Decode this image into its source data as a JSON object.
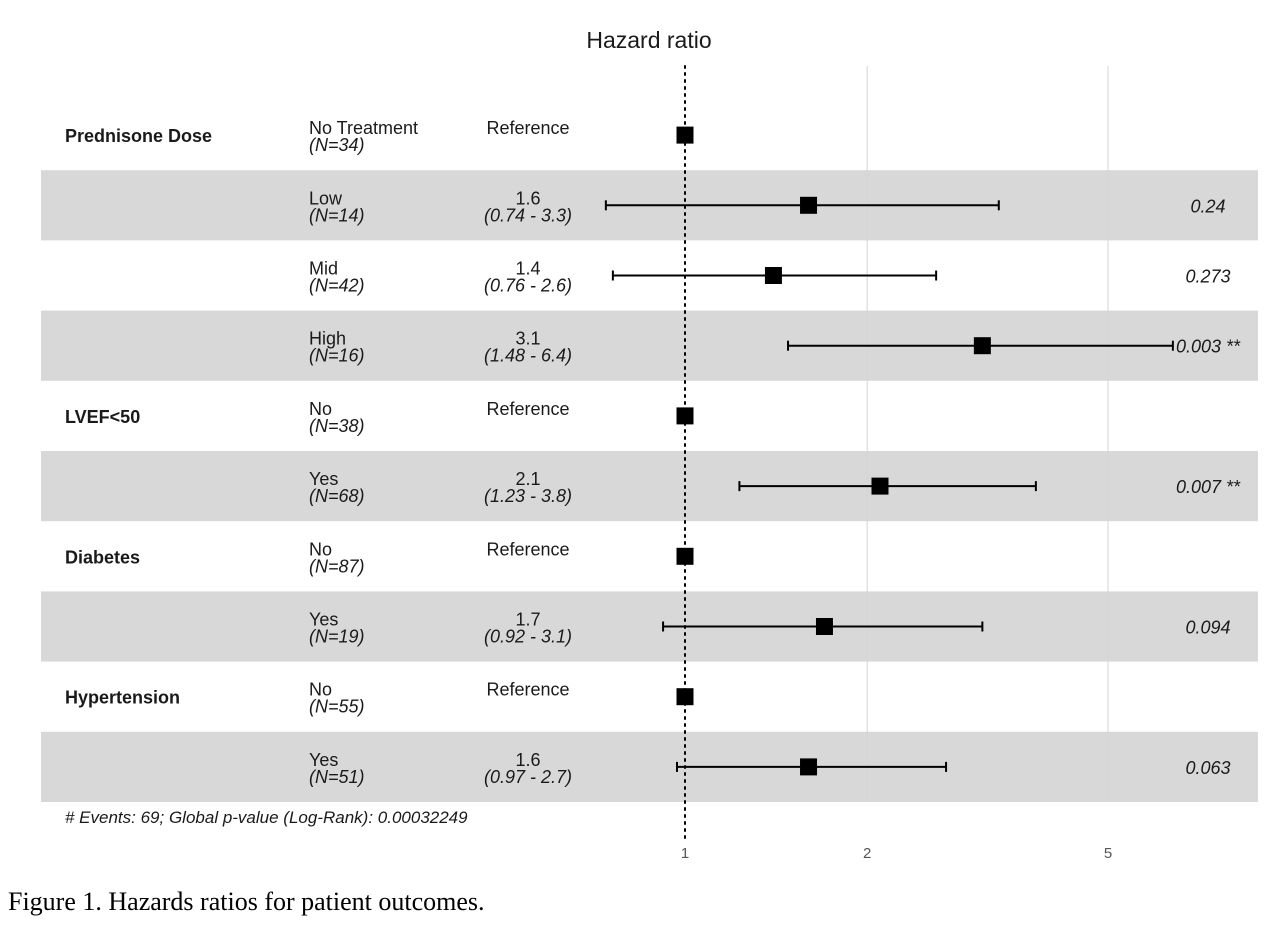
{
  "chart_data": {
    "type": "forest",
    "title": "Hazard ratio",
    "x_scale": "log",
    "xlim": [
      0.6,
      8.0
    ],
    "x_ticks": [
      1,
      2,
      5
    ],
    "x_tick_labels": [
      "1",
      "2",
      "5"
    ],
    "reference_line": 1,
    "rows": [
      {
        "group": "Prednisone Dose",
        "level": "No Treatment",
        "n": "(N=34)",
        "estimate_text": "Reference",
        "ci_text": "",
        "hr": 1.0,
        "lower": null,
        "upper": null,
        "p_text": ""
      },
      {
        "group": "",
        "level": "Low",
        "n": "(N=14)",
        "estimate_text": "1.6",
        "ci_text": "(0.74 - 3.3)",
        "hr": 1.6,
        "lower": 0.74,
        "upper": 3.3,
        "p_text": "0.24"
      },
      {
        "group": "",
        "level": "Mid",
        "n": "(N=42)",
        "estimate_text": "1.4",
        "ci_text": "(0.76 - 2.6)",
        "hr": 1.4,
        "lower": 0.76,
        "upper": 2.6,
        "p_text": "0.273"
      },
      {
        "group": "",
        "level": "High",
        "n": "(N=16)",
        "estimate_text": "3.1",
        "ci_text": "(1.48 - 6.4)",
        "hr": 3.1,
        "lower": 1.48,
        "upper": 6.4,
        "p_text": "0.003 **"
      },
      {
        "group": "LVEF<50",
        "level": "No",
        "n": "(N=38)",
        "estimate_text": "Reference",
        "ci_text": "",
        "hr": 1.0,
        "lower": null,
        "upper": null,
        "p_text": ""
      },
      {
        "group": "",
        "level": "Yes",
        "n": "(N=68)",
        "estimate_text": "2.1",
        "ci_text": "(1.23 - 3.8)",
        "hr": 2.1,
        "lower": 1.23,
        "upper": 3.8,
        "p_text": "0.007 **"
      },
      {
        "group": "Diabetes",
        "level": "No",
        "n": "(N=87)",
        "estimate_text": "Reference",
        "ci_text": "",
        "hr": 1.0,
        "lower": null,
        "upper": null,
        "p_text": ""
      },
      {
        "group": "",
        "level": "Yes",
        "n": "(N=19)",
        "estimate_text": "1.7",
        "ci_text": "(0.92 - 3.1)",
        "hr": 1.7,
        "lower": 0.92,
        "upper": 3.1,
        "p_text": "0.094"
      },
      {
        "group": "Hypertension",
        "level": "No",
        "n": "(N=55)",
        "estimate_text": "Reference",
        "ci_text": "",
        "hr": 1.0,
        "lower": null,
        "upper": null,
        "p_text": ""
      },
      {
        "group": "",
        "level": "Yes",
        "n": "(N=51)",
        "estimate_text": "1.6",
        "ci_text": "(0.97 - 2.7)",
        "hr": 1.6,
        "lower": 0.97,
        "upper": 2.7,
        "p_text": "0.063"
      }
    ],
    "footnote": "# Events: 69; Global p-value (Log-Rank): 0.00032249"
  },
  "caption": "Figure 1. Hazards ratios for patient outcomes.",
  "colors": {
    "stripe": "#d9d8d8",
    "marker": "#000000",
    "gridline": "#d4d4d4",
    "text": "#1a1a1a",
    "tick_text": "#555555"
  }
}
